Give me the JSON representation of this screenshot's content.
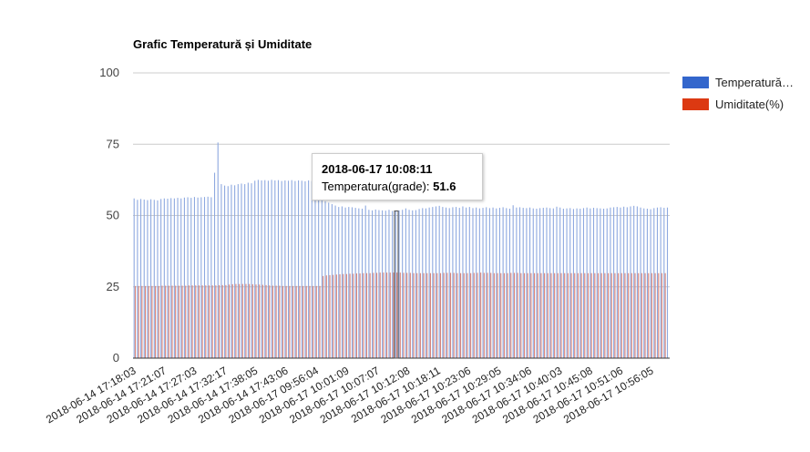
{
  "chart_data": {
    "type": "bar",
    "title": "Grafic Temperatură și Umiditate",
    "ylim": [
      0,
      100
    ],
    "y_ticks": [
      "0",
      "25",
      "50",
      "75",
      "100"
    ],
    "x_tick_labels": [
      "2018-06-14 17:18:03",
      "2018-06-14 17:21:07",
      "2018-06-14 17:27:03",
      "2018-06-14 17:32:17",
      "2018-06-14 17:38:05",
      "2018-06-14 17:43:06",
      "2018-06-17 09:56:04",
      "2018-06-17 10:01:09",
      "2018-06-17 10:07:07",
      "2018-06-17 10:12:08",
      "2018-06-17 10:18:11",
      "2018-06-17 10:23:06",
      "2018-06-17 10:29:05",
      "2018-06-17 10:34:06",
      "2018-06-17 10:40:03",
      "2018-06-17 10:45:08",
      "2018-06-17 10:51:06",
      "2018-06-17 10:56:05"
    ],
    "grid": true,
    "legend_position": "right",
    "series": [
      {
        "name": "Temperatură…",
        "color": "#3366cc",
        "values": [
          56,
          55.5,
          55.8,
          55.6,
          55.4,
          55.7,
          55.5,
          55.3,
          55.8,
          56,
          55.9,
          56.1,
          56,
          56.2,
          56,
          56.3,
          56.4,
          56.2,
          56.5,
          56.3,
          56.4,
          56.5,
          56.6,
          56.4,
          65,
          75.6,
          61,
          60.5,
          60.3,
          60.8,
          60.6,
          61,
          61.2,
          61,
          61.5,
          61.3,
          62.2,
          62.5,
          62.3,
          62.4,
          62.2,
          62.5,
          62.3,
          62.4,
          62.1,
          62.3,
          62.2,
          62.4,
          62.1,
          62.3,
          62.2,
          62,
          62.3,
          62.1,
          62.2,
          62.3,
          55.5,
          55,
          54.5,
          54,
          53.5,
          53,
          53.2,
          52.8,
          53,
          52.9,
          52.7,
          52.5,
          52.4,
          53.5,
          52,
          51.8,
          52.1,
          51.9,
          51.8,
          51.7,
          52,
          51.6,
          51.6,
          51.8,
          52,
          52.5,
          52,
          51.8,
          51.9,
          52.3,
          52.6,
          52.5,
          52.8,
          53,
          53.2,
          53.4,
          53,
          52.8,
          52.6,
          52.9,
          53,
          52.7,
          53.2,
          52.8,
          53,
          52.6,
          52.8,
          52.5,
          52.7,
          52.9,
          52.6,
          52.8,
          52.5,
          52.7,
          52.9,
          52.6,
          52.4,
          53.6,
          52.8,
          52.9,
          52.7,
          52.6,
          52.8,
          52.5,
          52.4,
          52.6,
          52.7,
          52.8,
          52.6,
          52.5,
          53.1,
          52.8,
          52.4,
          52.5,
          52.6,
          52.3,
          52.5,
          52.4,
          52.6,
          52.8,
          52.5,
          52.7,
          52.6,
          52.5,
          52.4,
          52.5,
          52.8,
          52.9,
          53,
          52.8,
          53.1,
          52.9,
          53.2,
          53.4,
          53.2,
          52.8,
          52.5,
          52.4,
          52.2,
          52.6,
          52.8,
          52.9,
          52.7,
          52.8
        ],
        "values_unlabeled": true
      },
      {
        "name": "Umiditate(%)",
        "color": "#dc3912",
        "values": [
          25.3,
          25.3,
          25.3,
          25.3,
          25.3,
          25.3,
          25.3,
          25.3,
          25.4,
          25.4,
          25.4,
          25.4,
          25.4,
          25.4,
          25.4,
          25.4,
          25.5,
          25.5,
          25.5,
          25.5,
          25.5,
          25.5,
          25.5,
          25.5,
          25.5,
          25.6,
          25.6,
          25.6,
          25.8,
          25.9,
          26,
          26,
          26,
          26,
          26,
          25.9,
          25.8,
          25.8,
          25.7,
          25.6,
          25.5,
          25.4,
          25.4,
          25.4,
          25.3,
          25.3,
          25.3,
          25.3,
          25.3,
          25.3,
          25.3,
          25.3,
          25.3,
          25.3,
          25.3,
          25.3,
          28.8,
          29,
          29.1,
          29.2,
          29.3,
          29.4,
          29.5,
          29.5,
          29.6,
          29.6,
          29.7,
          29.7,
          29.8,
          29.8,
          29.8,
          29.9,
          29.9,
          30,
          30,
          30,
          30,
          30,
          30,
          30,
          29.9,
          29.9,
          29.9,
          29.8,
          29.8,
          29.8,
          29.8,
          29.8,
          29.8,
          29.8,
          29.8,
          29.8,
          29.9,
          29.9,
          29.9,
          29.9,
          29.8,
          29.8,
          29.8,
          29.8,
          29.8,
          29.9,
          29.9,
          30,
          29.9,
          29.9,
          29.9,
          29.8,
          29.8,
          29.8,
          29.8,
          29.8,
          29.9,
          29.9,
          29.9,
          29.8,
          29.8,
          29.8,
          29.8,
          29.8,
          29.8,
          29.8,
          29.8,
          29.8,
          29.8,
          29.8,
          29.8,
          29.8,
          29.8,
          29.8,
          29.8,
          29.8,
          29.8,
          29.8,
          29.8,
          29.8,
          29.8,
          29.8,
          29.8,
          29.8,
          29.8,
          29.8,
          29.8,
          29.8,
          29.8,
          29.8,
          29.8,
          29.8,
          29.8,
          29.8,
          29.8,
          29.8,
          29.8,
          29.8,
          29.8,
          29.8,
          29.8,
          29.8,
          29.8
        ],
        "values_unlabeled": true
      }
    ],
    "tooltip": {
      "title": "2018-06-17 10:08:11",
      "label": "Temperatura(grade):",
      "value": "51.6",
      "index": 78
    }
  }
}
